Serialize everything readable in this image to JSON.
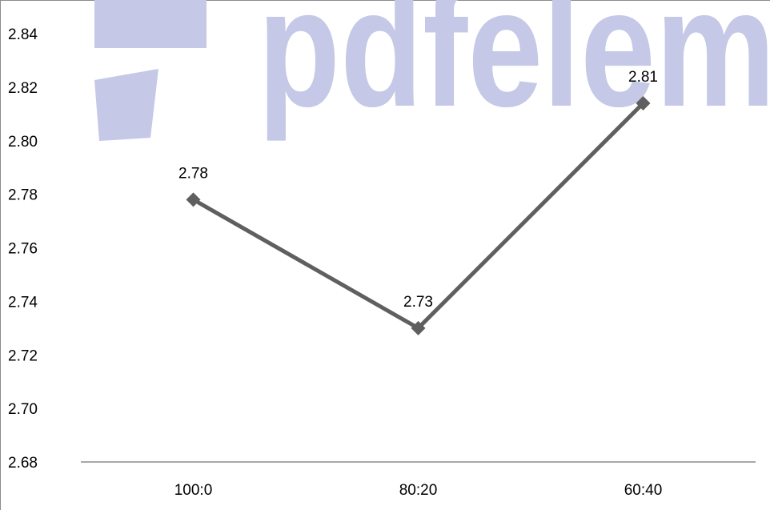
{
  "watermark": {
    "text": "pdfelement",
    "color": "#c5c8e6"
  },
  "chart_data": {
    "type": "line",
    "categories": [
      "100:0",
      "80:20",
      "60:40"
    ],
    "series": [
      {
        "values": [
          2.778,
          2.73,
          2.814
        ],
        "labels": [
          "2.78",
          "2.73",
          "2.81"
        ],
        "color": "#5f5f5f",
        "marker": "diamond"
      }
    ],
    "ylim": [
      2.68,
      2.84
    ],
    "yticks": [
      "2.68",
      "2.70",
      "2.72",
      "2.74",
      "2.76",
      "2.78",
      "2.80",
      "2.82",
      "2.84"
    ],
    "grid": false,
    "title": "",
    "xlabel": "",
    "ylabel": ""
  }
}
